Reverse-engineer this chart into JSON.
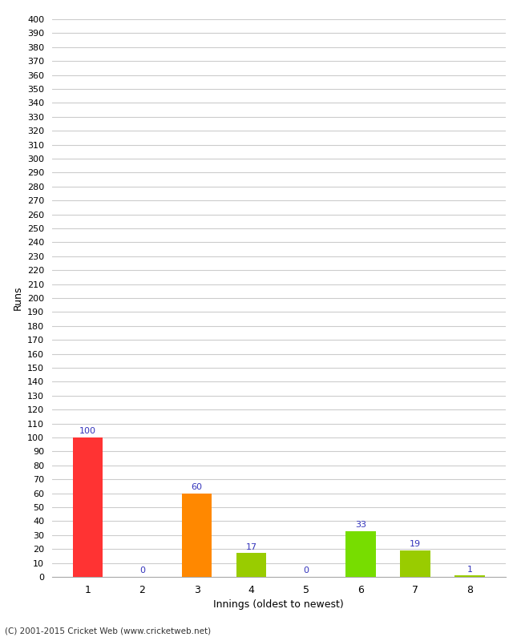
{
  "categories": [
    "1",
    "2",
    "3",
    "4",
    "5",
    "6",
    "7",
    "8"
  ],
  "values": [
    100,
    0,
    60,
    17,
    0,
    33,
    19,
    1
  ],
  "bar_colors": [
    "#ff3333",
    "#99cc00",
    "#ff8800",
    "#99cc00",
    "#99cc00",
    "#77dd00",
    "#99cc00",
    "#99cc00"
  ],
  "xlabel": "Innings (oldest to newest)",
  "ylabel": "Runs",
  "ylim": [
    0,
    400
  ],
  "ytick_step": 10,
  "background_color": "#ffffff",
  "grid_color": "#cccccc",
  "label_color": "#3333bb",
  "footer": "(C) 2001-2015 Cricket Web (www.cricketweb.net)",
  "bar_width": 0.55
}
